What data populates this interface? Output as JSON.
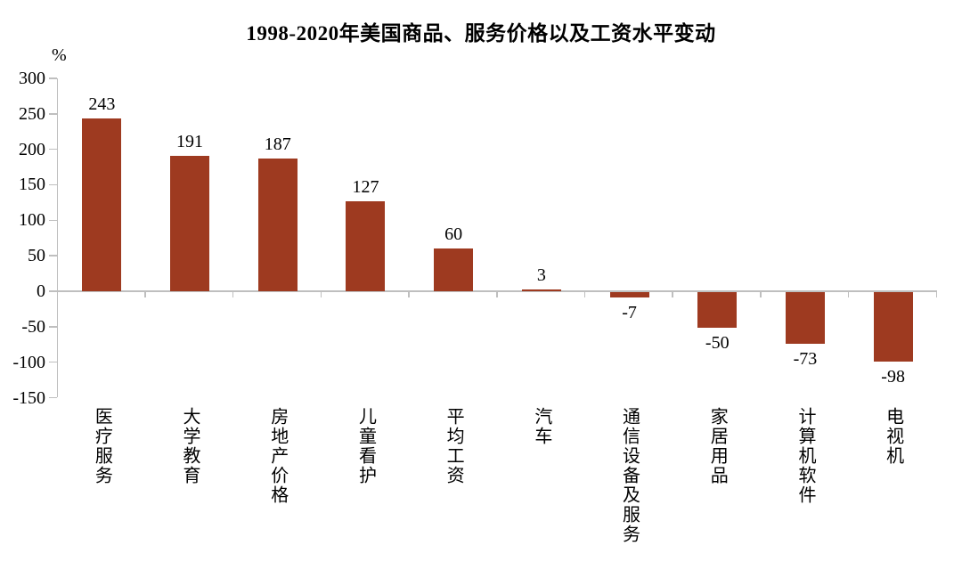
{
  "chart_data": {
    "type": "bar",
    "title": "1998-2020年美国商品、服务价格以及工资水平变动",
    "unit_label": "%",
    "categories": [
      "医疗服务",
      "大学教育",
      "房地产价格",
      "儿童看护",
      "平均工资",
      "汽车",
      "通信设备及服务",
      "家居用品",
      "计算机软件",
      "电视机"
    ],
    "values": [
      243,
      191,
      187,
      127,
      60,
      3,
      -7,
      -50,
      -73,
      -98
    ],
    "y_ticks": [
      300,
      250,
      200,
      150,
      100,
      50,
      0,
      -50,
      -100,
      -150
    ],
    "ylim": [
      -150,
      300
    ],
    "grid": false,
    "legend": "none",
    "data_labels": true,
    "colors": {
      "bar": "#9e3a20",
      "axis": "#bfbfbf",
      "text": "#000000"
    }
  }
}
